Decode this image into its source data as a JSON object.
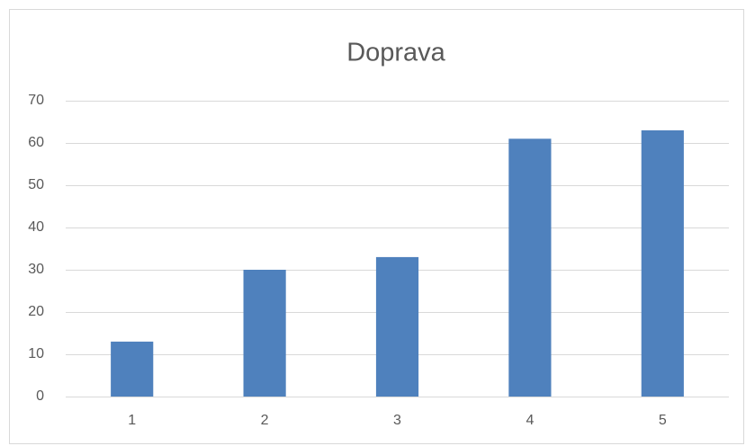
{
  "chart_data": {
    "type": "bar",
    "title": "Doprava",
    "categories": [
      "1",
      "2",
      "3",
      "4",
      "5"
    ],
    "values": [
      13,
      30,
      33,
      61,
      63
    ],
    "color": "#4f81bd",
    "ylim": [
      0,
      70
    ],
    "yticks": [
      0,
      10,
      20,
      30,
      40,
      50,
      60,
      70
    ],
    "grid": true
  }
}
